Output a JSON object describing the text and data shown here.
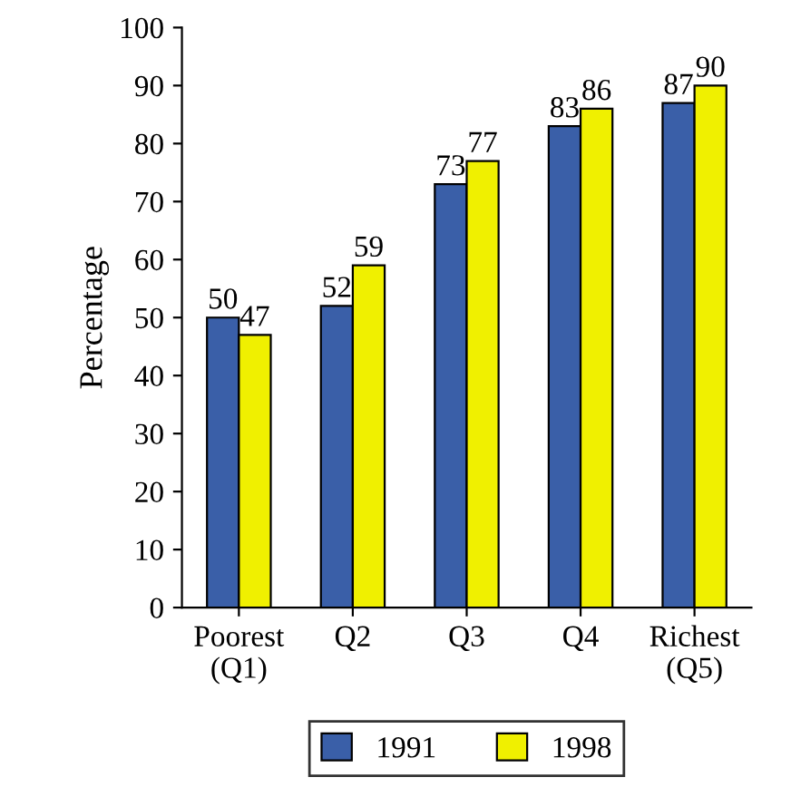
{
  "chart_data": {
    "type": "bar",
    "ylabel": "Percentage",
    "categories": [
      "Poorest\n(Q1)",
      "Q2",
      "Q3",
      "Q4",
      "Richest\n(Q5)"
    ],
    "series": [
      {
        "name": "1991",
        "color": "#3a5fa8",
        "values": [
          50,
          52,
          73,
          83,
          87
        ]
      },
      {
        "name": "1998",
        "color": "#f0f000",
        "values": [
          47,
          59,
          77,
          86,
          90
        ]
      }
    ],
    "ylim": [
      0,
      100
    ],
    "yticks": [
      0,
      10,
      20,
      30,
      40,
      50,
      60,
      70,
      80,
      90,
      100
    ],
    "grid": false,
    "legend": "bottom",
    "data_labels": true
  }
}
